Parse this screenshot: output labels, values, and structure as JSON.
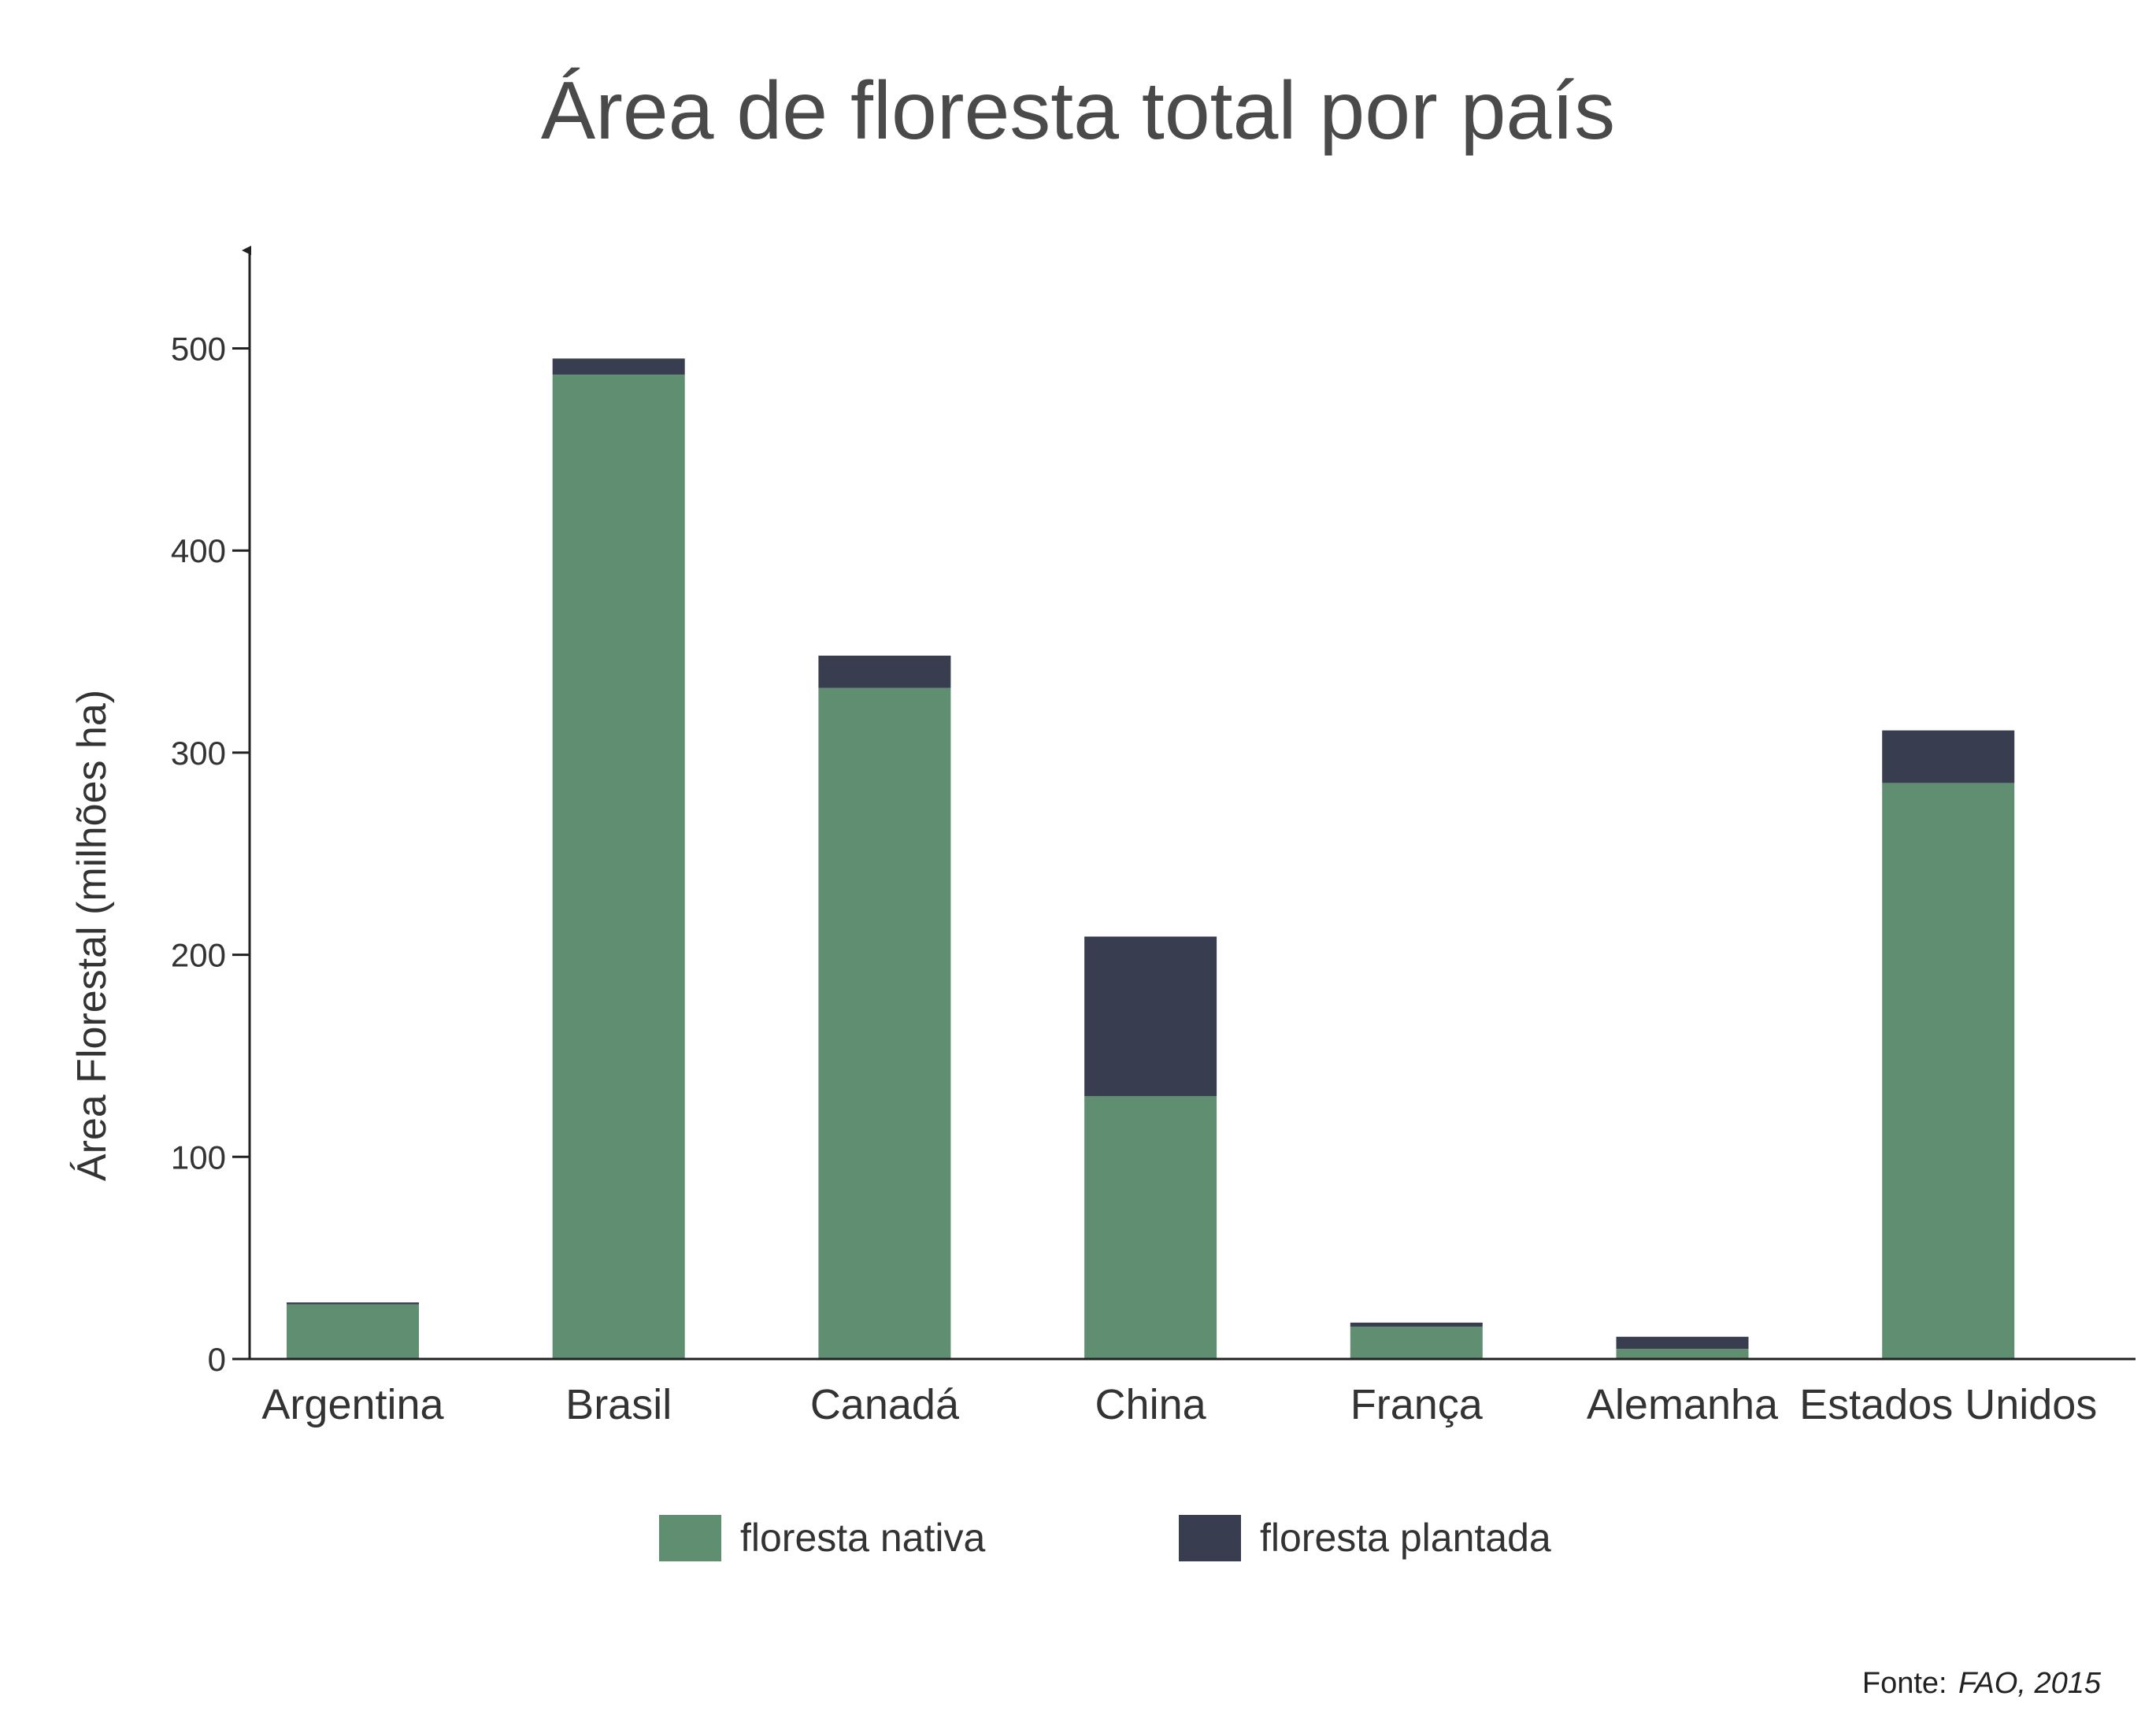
{
  "chart_data": {
    "type": "bar",
    "stacked": true,
    "title": "Área de floresta total por país",
    "xlabel": "",
    "ylabel": "Área Florestal (milhões ha)",
    "ylim": [
      0,
      540
    ],
    "yticks": [
      0,
      100,
      200,
      300,
      400,
      500
    ],
    "grid": false,
    "legend_position": "bottom",
    "categories": [
      "Argentina",
      "Brasil",
      "Canadá",
      "China",
      "França",
      "Alemanha",
      "Estados Unidos"
    ],
    "series": [
      {
        "name": "floresta nativa",
        "color": "#5f8e71",
        "values": [
          27,
          487,
          332,
          130,
          16,
          5,
          285
        ]
      },
      {
        "name": "floresta plantada",
        "color": "#383e50",
        "values": [
          1,
          8,
          16,
          79,
          2,
          6,
          26
        ]
      }
    ]
  },
  "source": {
    "label": "Fonte:",
    "value": "FAO, 2015"
  }
}
